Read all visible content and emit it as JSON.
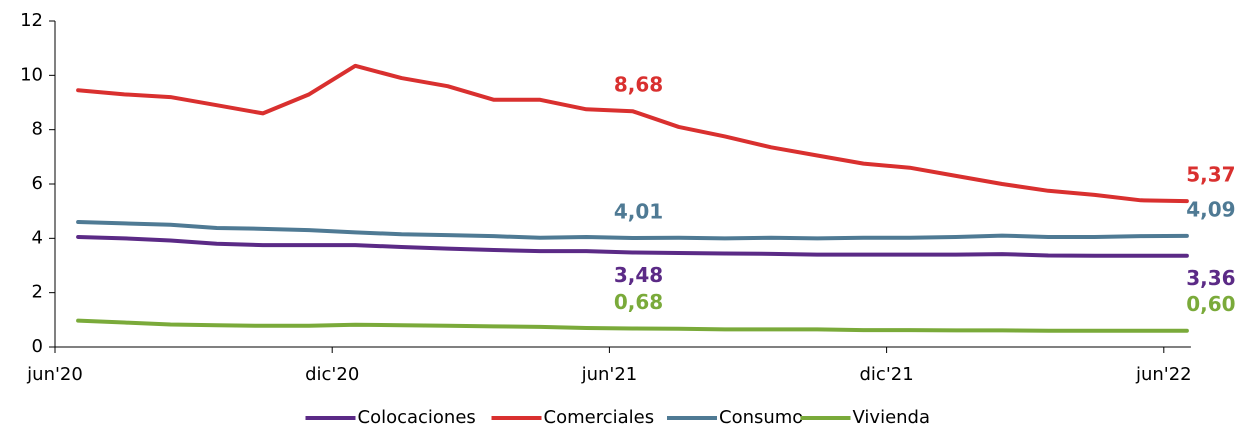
{
  "chart_data": {
    "type": "line",
    "categories": [
      "jun'20",
      null,
      null,
      null,
      null,
      null,
      "dic'20",
      null,
      null,
      null,
      null,
      null,
      "jun'21",
      null,
      null,
      null,
      null,
      null,
      "dic'21",
      null,
      null,
      null,
      null,
      null,
      "jun'22"
    ],
    "series": [
      {
        "name": "Colocaciones",
        "color": "#5b2a86",
        "values": [
          4.05,
          4.0,
          3.92,
          3.8,
          3.75,
          3.75,
          3.75,
          3.68,
          3.62,
          3.57,
          3.53,
          3.53,
          3.48,
          3.46,
          3.44,
          3.43,
          3.4,
          3.4,
          3.4,
          3.4,
          3.42,
          3.37,
          3.36,
          3.36,
          3.36
        ],
        "value_labels": [
          null,
          null,
          null,
          null,
          null,
          null,
          null,
          null,
          null,
          null,
          null,
          null,
          "3,48",
          null,
          null,
          null,
          null,
          null,
          null,
          null,
          null,
          null,
          null,
          null,
          "3,36"
        ]
      },
      {
        "name": "Comerciales",
        "color": "#d9302f",
        "values": [
          9.45,
          9.3,
          9.2,
          8.9,
          8.6,
          9.3,
          10.35,
          9.9,
          9.6,
          9.1,
          9.1,
          8.75,
          8.68,
          8.1,
          7.75,
          7.35,
          7.05,
          6.75,
          6.6,
          6.3,
          6.0,
          5.75,
          5.6,
          5.4,
          5.37
        ],
        "value_labels": [
          null,
          null,
          null,
          null,
          null,
          null,
          null,
          null,
          null,
          null,
          null,
          null,
          "8,68",
          null,
          null,
          null,
          null,
          null,
          null,
          null,
          null,
          null,
          null,
          null,
          "5,37"
        ]
      },
      {
        "name": "Consumo",
        "color": "#4f7a94",
        "values": [
          4.6,
          4.55,
          4.5,
          4.38,
          4.35,
          4.3,
          4.22,
          4.15,
          4.12,
          4.08,
          4.02,
          4.05,
          4.01,
          4.02,
          4.0,
          4.02,
          4.0,
          4.02,
          4.02,
          4.05,
          4.1,
          4.05,
          4.05,
          4.08,
          4.09
        ],
        "value_labels": [
          null,
          null,
          null,
          null,
          null,
          null,
          null,
          null,
          null,
          null,
          null,
          null,
          "4,01",
          null,
          null,
          null,
          null,
          null,
          null,
          null,
          null,
          null,
          null,
          null,
          "4,09"
        ]
      },
      {
        "name": "Vivienda",
        "color": "#7aaa3a",
        "values": [
          0.97,
          0.9,
          0.83,
          0.8,
          0.78,
          0.78,
          0.82,
          0.8,
          0.78,
          0.76,
          0.74,
          0.7,
          0.68,
          0.67,
          0.65,
          0.65,
          0.65,
          0.62,
          0.62,
          0.61,
          0.61,
          0.6,
          0.6,
          0.6,
          0.6
        ],
        "value_labels": [
          null,
          null,
          null,
          null,
          null,
          null,
          null,
          null,
          null,
          null,
          null,
          null,
          "0,68",
          null,
          null,
          null,
          null,
          null,
          null,
          null,
          null,
          null,
          null,
          null,
          "0,60"
        ]
      }
    ],
    "ylim": [
      0,
      12
    ],
    "yticks": [
      0,
      2,
      4,
      6,
      8,
      10,
      12
    ],
    "grid": false,
    "legend": "bottom"
  }
}
